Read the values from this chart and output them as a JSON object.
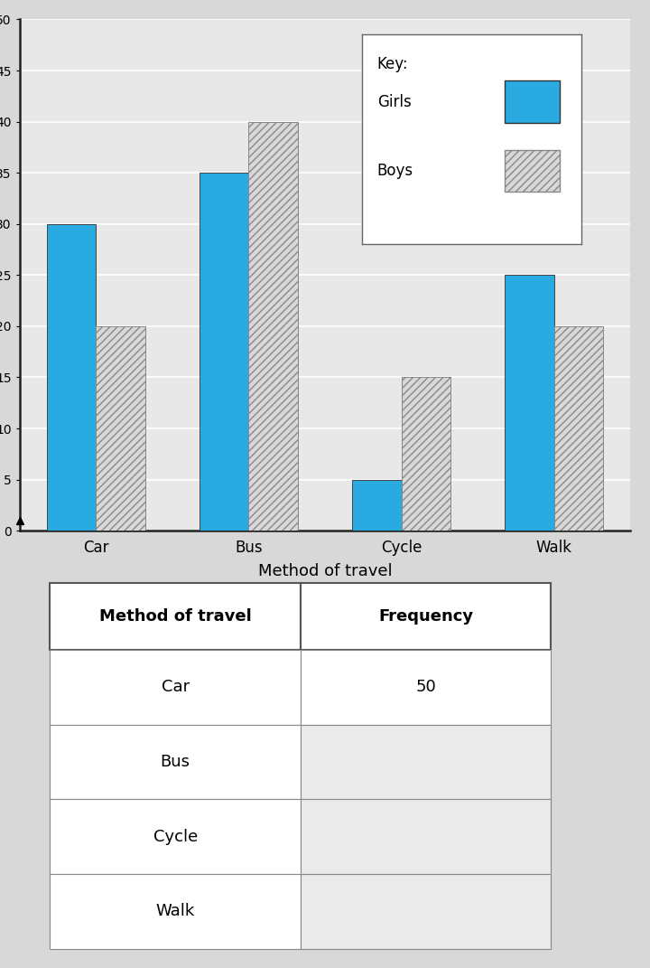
{
  "categories": [
    "Car",
    "Bus",
    "Cycle",
    "Walk"
  ],
  "girls_values": [
    30,
    35,
    5,
    25
  ],
  "boys_values": [
    20,
    40,
    15,
    20
  ],
  "girls_color": "#29ABE2",
  "boys_hatch": "////",
  "boys_facecolor": "#D8D8D8",
  "boys_edgecolor": "#888888",
  "ylabel": "Frequency",
  "xlabel": "Method of travel",
  "ylim": [
    0,
    50
  ],
  "ytick_step": 5,
  "key_title": "Key:",
  "key_girls": "Girls",
  "key_boys": "Boys",
  "bar_width": 0.32,
  "table_headers": [
    "Method of travel",
    "Frequency"
  ],
  "table_rows": [
    [
      "Car",
      "50"
    ],
    [
      "Bus",
      ""
    ],
    [
      "Cycle",
      ""
    ],
    [
      "Walk",
      ""
    ]
  ],
  "chart_bg": "#e8e8e8",
  "table_bg": "#f5f5f5",
  "grid_color": "#ffffff",
  "fig_bg": "#d8d8d8"
}
